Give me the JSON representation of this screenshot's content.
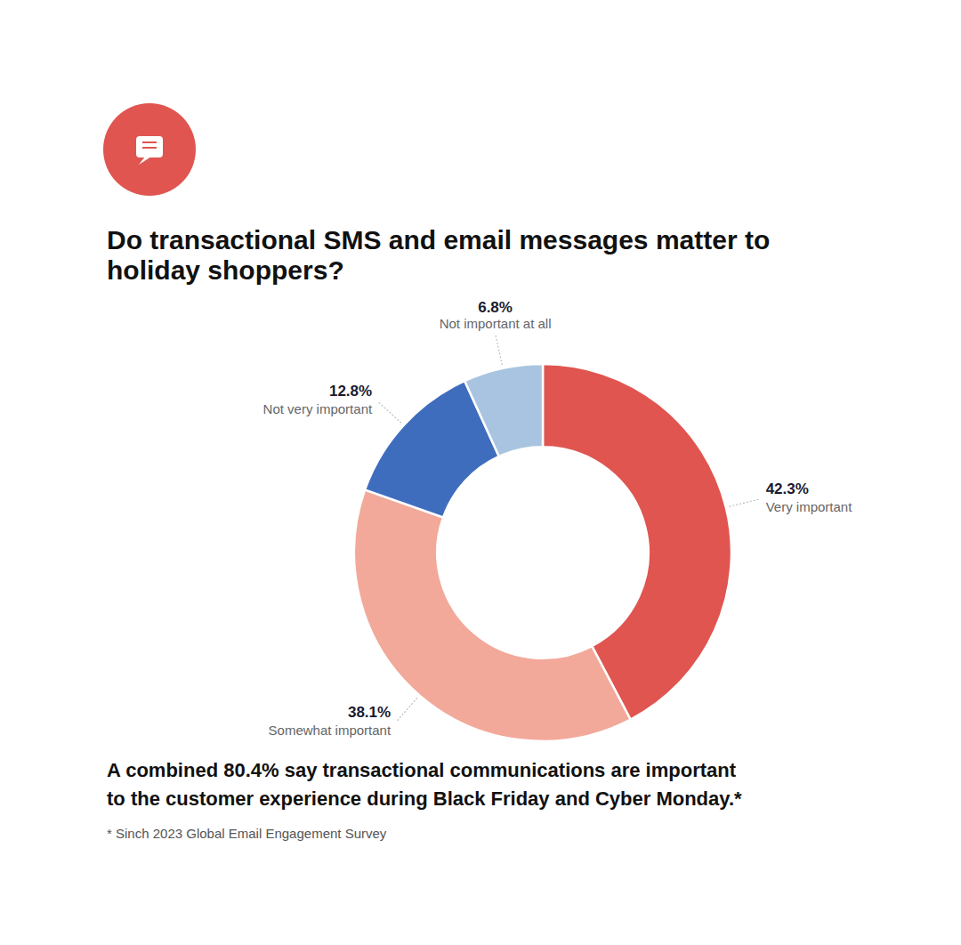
{
  "chart_data": {
    "type": "donut",
    "title": "Do transactional SMS and email messages matter to\nholiday shoppers?",
    "categories": [
      "Very important",
      "Somewhat important",
      "Not very important",
      "Not important at all"
    ],
    "values": [
      42.3,
      38.1,
      12.8,
      6.8
    ],
    "value_labels": [
      "42.3%",
      "38.1%",
      "12.8%",
      "6.8%"
    ],
    "colors": [
      "#E05550",
      "#F2A99A",
      "#3F6DBE",
      "#A8C4E0"
    ],
    "data_labels": true,
    "annotations": [
      "A combined 80.4% say transactional communications are important\nto the customer experience during Black Friday and Cyber Monday.*",
      "* Sinch 2023 Global Email Engagement Survey"
    ]
  }
}
